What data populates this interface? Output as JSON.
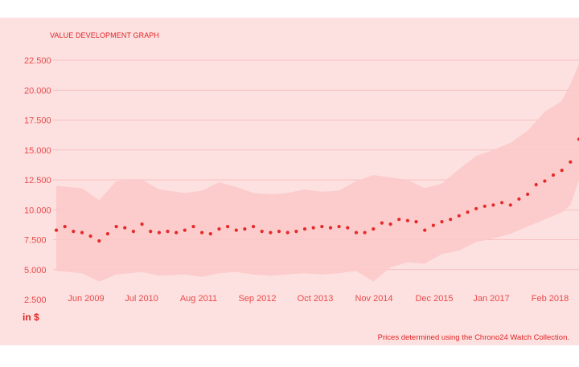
{
  "title": "VALUE DEVELOPMENT GRAPH",
  "unit_label": "in $",
  "footnote": "Prices determined using the Chrono24 Watch Collection.",
  "colors": {
    "panel": "#fde0e0",
    "band": "#fbc8c8",
    "dots": "#e52a2a",
    "grid": "#f4b6b6",
    "axis_text": "#ea4a4a"
  },
  "chart_data": {
    "type": "line",
    "title": "VALUE DEVELOPMENT GRAPH",
    "ylabel": "in $",
    "ylim": [
      2500,
      22500
    ],
    "yticks": [
      2500,
      5000,
      7500,
      10000,
      12500,
      15000,
      17500,
      20000,
      22500
    ],
    "ytick_labels": [
      "2.500",
      "5.000",
      "7.500",
      "10.000",
      "12.500",
      "15.000",
      "17.500",
      "20.000",
      "22.500"
    ],
    "xtick_labels": [
      "Jun 2009",
      "Jul 2010",
      "Aug 2011",
      "Sep 2012",
      "Oct 2013",
      "Nov 2014",
      "Dec 2015",
      "Jan 2017",
      "Feb 2018"
    ],
    "x_range": [
      "2008-09",
      "2018-11"
    ],
    "grid": true,
    "series": [
      {
        "values": [
          [
            "2008-09",
            8300
          ],
          [
            "2008-11",
            8600
          ],
          [
            "2009-01",
            8200
          ],
          [
            "2009-03",
            8100
          ],
          [
            "2009-05",
            7800
          ],
          [
            "2009-07",
            7400
          ],
          [
            "2009-09",
            8000
          ],
          [
            "2009-11",
            8600
          ],
          [
            "2010-01",
            8500
          ],
          [
            "2010-03",
            8200
          ],
          [
            "2010-05",
            8800
          ],
          [
            "2010-07",
            8200
          ],
          [
            "2010-09",
            8100
          ],
          [
            "2010-11",
            8200
          ],
          [
            "2011-01",
            8100
          ],
          [
            "2011-03",
            8300
          ],
          [
            "2011-05",
            8600
          ],
          [
            "2011-07",
            8100
          ],
          [
            "2011-09",
            8000
          ],
          [
            "2011-11",
            8400
          ],
          [
            "2012-01",
            8600
          ],
          [
            "2012-03",
            8300
          ],
          [
            "2012-05",
            8400
          ],
          [
            "2012-07",
            8600
          ],
          [
            "2012-09",
            8200
          ],
          [
            "2012-11",
            8100
          ],
          [
            "2013-01",
            8200
          ],
          [
            "2013-03",
            8100
          ],
          [
            "2013-05",
            8200
          ],
          [
            "2013-07",
            8400
          ],
          [
            "2013-09",
            8500
          ],
          [
            "2013-11",
            8600
          ],
          [
            "2014-01",
            8500
          ],
          [
            "2014-03",
            8600
          ],
          [
            "2014-05",
            8500
          ],
          [
            "2014-07",
            8100
          ],
          [
            "2014-09",
            8100
          ],
          [
            "2014-11",
            8400
          ],
          [
            "2015-01",
            8900
          ],
          [
            "2015-03",
            8800
          ],
          [
            "2015-05",
            9200
          ],
          [
            "2015-07",
            9100
          ],
          [
            "2015-09",
            9000
          ],
          [
            "2015-11",
            8300
          ],
          [
            "2016-01",
            8700
          ],
          [
            "2016-03",
            9000
          ],
          [
            "2016-05",
            9200
          ],
          [
            "2016-07",
            9500
          ],
          [
            "2016-09",
            9800
          ],
          [
            "2016-11",
            10100
          ],
          [
            "2017-01",
            10300
          ],
          [
            "2017-03",
            10400
          ],
          [
            "2017-05",
            10600
          ],
          [
            "2017-07",
            10400
          ],
          [
            "2017-09",
            10900
          ],
          [
            "2017-11",
            11300
          ],
          [
            "2018-01",
            12100
          ],
          [
            "2018-03",
            12400
          ],
          [
            "2018-05",
            12900
          ],
          [
            "2018-07",
            13300
          ],
          [
            "2018-09",
            14000
          ],
          [
            "2018-11",
            15900
          ]
        ],
        "band_upper": [
          [
            "2008-09",
            12000
          ],
          [
            "2009-03",
            11800
          ],
          [
            "2009-07",
            10800
          ],
          [
            "2009-11",
            12400
          ],
          [
            "2010-05",
            12500
          ],
          [
            "2010-09",
            11700
          ],
          [
            "2011-03",
            11400
          ],
          [
            "2011-07",
            11600
          ],
          [
            "2011-11",
            12300
          ],
          [
            "2012-03",
            11900
          ],
          [
            "2012-07",
            11400
          ],
          [
            "2012-11",
            11300
          ],
          [
            "2013-03",
            11400
          ],
          [
            "2013-07",
            11700
          ],
          [
            "2013-11",
            11500
          ],
          [
            "2014-03",
            11600
          ],
          [
            "2014-07",
            12400
          ],
          [
            "2014-11",
            12900
          ],
          [
            "2015-03",
            12700
          ],
          [
            "2015-07",
            12500
          ],
          [
            "2015-11",
            11800
          ],
          [
            "2016-03",
            12200
          ],
          [
            "2016-07",
            13400
          ],
          [
            "2016-11",
            14500
          ],
          [
            "2017-03",
            15000
          ],
          [
            "2017-07",
            15600
          ],
          [
            "2017-11",
            16600
          ],
          [
            "2018-03",
            18200
          ],
          [
            "2018-07",
            19100
          ],
          [
            "2018-09",
            20500
          ],
          [
            "2018-11",
            22200
          ]
        ],
        "band_lower": [
          [
            "2008-09",
            4900
          ],
          [
            "2009-03",
            4700
          ],
          [
            "2009-07",
            4000
          ],
          [
            "2009-11",
            4600
          ],
          [
            "2010-05",
            4800
          ],
          [
            "2010-09",
            4500
          ],
          [
            "2011-03",
            4600
          ],
          [
            "2011-07",
            4400
          ],
          [
            "2011-11",
            4700
          ],
          [
            "2012-03",
            4800
          ],
          [
            "2012-07",
            4600
          ],
          [
            "2012-11",
            4500
          ],
          [
            "2013-03",
            4600
          ],
          [
            "2013-07",
            4700
          ],
          [
            "2013-11",
            4600
          ],
          [
            "2014-03",
            4700
          ],
          [
            "2014-07",
            4900
          ],
          [
            "2014-11",
            4000
          ],
          [
            "2015-03",
            5200
          ],
          [
            "2015-07",
            5600
          ],
          [
            "2015-11",
            5500
          ],
          [
            "2016-03",
            6300
          ],
          [
            "2016-07",
            6600
          ],
          [
            "2016-11",
            7300
          ],
          [
            "2017-03",
            7600
          ],
          [
            "2017-07",
            8000
          ],
          [
            "2017-11",
            8600
          ],
          [
            "2018-03",
            9200
          ],
          [
            "2018-07",
            9800
          ],
          [
            "2018-09",
            10400
          ],
          [
            "2018-11",
            12500
          ]
        ]
      }
    ]
  }
}
